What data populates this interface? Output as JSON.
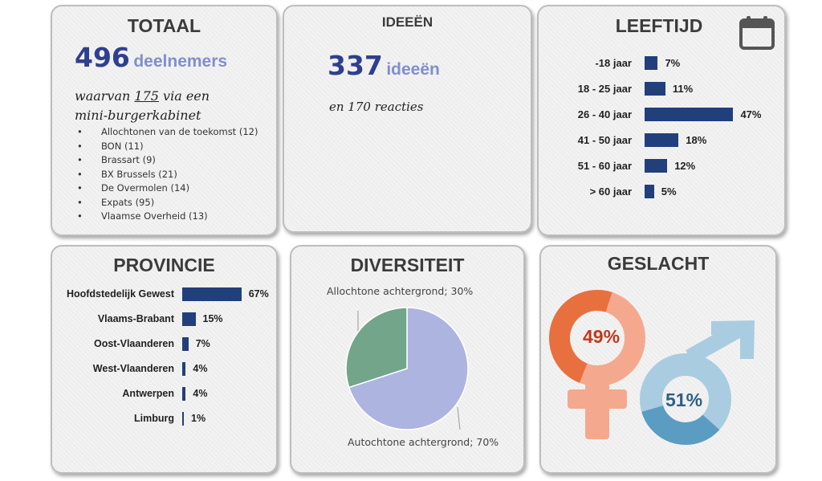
{
  "totaal": {
    "title": "TOTAAL",
    "count": "496",
    "unit": "deelnemers",
    "sub_prefix": "waarvan",
    "sub_number": "175",
    "sub_suffix": "via een",
    "sub_line2": "mini-burgerkabinet",
    "groups": [
      "Allochtonen van de toekomst (12)",
      "BON (11)",
      "Brassart (9)",
      "BX Brussels (21)",
      "De Overmolen (14)",
      "Expats (95)",
      "Vlaamse Overheid (13)"
    ]
  },
  "ideeen": {
    "title": "IDEEËN",
    "count": "337",
    "unit": "ideeën",
    "reactions": "en 170 reacties"
  },
  "leeftijd": {
    "title": "LEEFTIJD",
    "icon": "calendar-icon",
    "bars": [
      {
        "label": "-18 jaar",
        "value": 7,
        "text": "7%"
      },
      {
        "label": "18 - 25 jaar",
        "value": 11,
        "text": "11%"
      },
      {
        "label": "26 - 40 jaar",
        "value": 47,
        "text": "47%"
      },
      {
        "label": "41 - 50 jaar",
        "value": 18,
        "text": "18%"
      },
      {
        "label": "51 - 60 jaar",
        "value": 12,
        "text": "12%"
      },
      {
        "label": "> 60 jaar",
        "value": 5,
        "text": "5%"
      }
    ]
  },
  "provincie": {
    "title": "PROVINCIE",
    "bars": [
      {
        "label": "Hoofdstedelijk Gewest",
        "value": 67,
        "text": "67%"
      },
      {
        "label": "Vlaams-Brabant",
        "value": 15,
        "text": "15%"
      },
      {
        "label": "Oost-Vlaanderen",
        "value": 7,
        "text": "7%"
      },
      {
        "label": "West-Vlaanderen",
        "value": 4,
        "text": "4%"
      },
      {
        "label": "Antwerpen",
        "value": 4,
        "text": "4%"
      },
      {
        "label": "Limburg",
        "value": 1,
        "text": "1%"
      }
    ]
  },
  "diversiteit": {
    "title": "DIVERSITEIT",
    "slices": [
      {
        "label": "Allochtone achtergrond; 30%",
        "value": 30,
        "color": "#72a58a"
      },
      {
        "label": "Autochtone achtergrond; 70%",
        "value": 70,
        "color": "#aeb4e0"
      }
    ]
  },
  "geslacht": {
    "title": "GESLACHT",
    "female": {
      "value": 49,
      "text": "49%",
      "icon": "female-symbol-icon",
      "color": "#e8703e",
      "light": "#f4a98e"
    },
    "male": {
      "value": 51,
      "text": "51%",
      "icon": "male-symbol-icon",
      "color": "#5b9cc3",
      "light": "#a9cce0"
    }
  },
  "chart_data": [
    {
      "type": "bar",
      "title": "LEEFTIJD",
      "orientation": "horizontal",
      "categories": [
        "-18 jaar",
        "18 - 25 jaar",
        "26 - 40 jaar",
        "41 - 50 jaar",
        "51 - 60 jaar",
        "> 60 jaar"
      ],
      "values": [
        7,
        11,
        47,
        18,
        12,
        5
      ],
      "unit": "%"
    },
    {
      "type": "bar",
      "title": "PROVINCIE",
      "orientation": "horizontal",
      "categories": [
        "Hoofdstedelijk Gewest",
        "Vlaams-Brabant",
        "Oost-Vlaanderen",
        "West-Vlaanderen",
        "Antwerpen",
        "Limburg"
      ],
      "values": [
        67,
        15,
        7,
        4,
        4,
        1
      ],
      "unit": "%"
    },
    {
      "type": "pie",
      "title": "DIVERSITEIT",
      "categories": [
        "Allochtone achtergrond",
        "Autochtone achtergrond"
      ],
      "values": [
        30,
        70
      ],
      "unit": "%"
    },
    {
      "type": "pie",
      "title": "GESLACHT",
      "values": [
        49,
        51
      ],
      "unit": "%"
    }
  ]
}
